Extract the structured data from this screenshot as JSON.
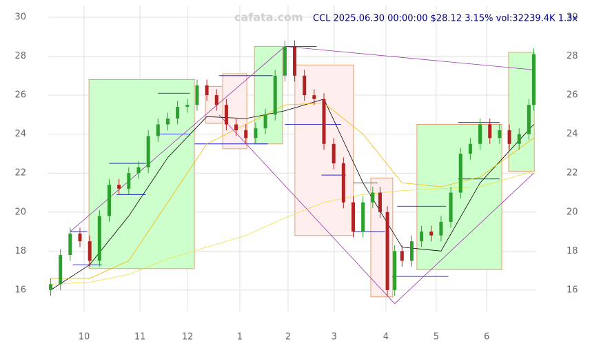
{
  "chart_data": {
    "type": "candlestick",
    "title": "CCL 2025.06.30 00:00:00 $28.12 3.15% vol:32239.4K 1.3x",
    "watermark": "cafata.com",
    "x": [
      1,
      5,
      9,
      13,
      17,
      21,
      25,
      29,
      33,
      37,
      41,
      45,
      49,
      53,
      57,
      61,
      65,
      69,
      73,
      77,
      81,
      85,
      89,
      93,
      97,
      101,
      105,
      109,
      113,
      117,
      121,
      125,
      129,
      133,
      136,
      139,
      142,
      145,
      149,
      153,
      157,
      161,
      165,
      169,
      173,
      177,
      181,
      185,
      189,
      193,
      197,
      199
    ],
    "open": [
      16.0,
      16.3,
      17.8,
      18.9,
      18.5,
      17.5,
      19.8,
      21.4,
      21.2,
      22.0,
      22.3,
      23.9,
      24.5,
      24.8,
      25.4,
      25.5,
      26.5,
      26.0,
      25.5,
      24.5,
      24.2,
      23.8,
      24.3,
      25.0,
      27.0,
      28.5,
      27.0,
      26.0,
      25.8,
      23.5,
      22.5,
      20.5,
      19.0,
      20.5,
      21.0,
      20.0,
      16.0,
      18.0,
      17.5,
      18.5,
      19.0,
      18.8,
      19.5,
      21.0,
      23.0,
      23.5,
      24.5,
      23.8,
      24.2,
      23.5,
      24.0,
      25.5
    ],
    "high": [
      16.6,
      18.1,
      19.2,
      19.2,
      18.8,
      20.1,
      21.7,
      21.7,
      22.3,
      22.6,
      24.2,
      24.8,
      25.1,
      25.7,
      25.8,
      26.8,
      26.8,
      26.3,
      25.8,
      24.8,
      24.5,
      24.6,
      25.3,
      27.3,
      28.8,
      28.8,
      27.3,
      26.3,
      26.1,
      23.8,
      22.8,
      20.8,
      20.8,
      21.3,
      21.3,
      20.3,
      18.3,
      18.3,
      18.8,
      19.3,
      19.3,
      19.8,
      21.3,
      23.3,
      23.8,
      24.8,
      24.8,
      24.5,
      24.5,
      24.3,
      25.8,
      28.4
    ],
    "low": [
      15.7,
      16.0,
      17.5,
      18.2,
      17.2,
      17.2,
      19.5,
      20.9,
      20.9,
      21.7,
      22.0,
      23.6,
      24.2,
      24.5,
      25.1,
      25.2,
      25.7,
      25.2,
      24.2,
      23.9,
      23.5,
      23.5,
      24.0,
      24.7,
      26.7,
      26.7,
      25.7,
      25.5,
      23.2,
      22.2,
      20.2,
      18.7,
      18.7,
      20.2,
      19.7,
      15.7,
      15.7,
      17.2,
      17.2,
      18.2,
      18.5,
      18.5,
      19.2,
      20.7,
      22.7,
      23.2,
      23.5,
      23.5,
      23.2,
      23.2,
      23.7,
      25.2
    ],
    "close": [
      16.3,
      17.8,
      18.9,
      18.5,
      17.5,
      19.8,
      21.4,
      21.2,
      22.0,
      22.3,
      23.9,
      24.5,
      24.8,
      25.4,
      25.5,
      26.5,
      26.0,
      25.5,
      24.5,
      24.2,
      23.8,
      24.3,
      25.0,
      27.0,
      28.5,
      27.0,
      26.0,
      25.8,
      23.5,
      22.5,
      20.5,
      19.0,
      20.5,
      21.0,
      20.0,
      16.0,
      18.0,
      17.5,
      18.5,
      19.0,
      18.8,
      19.5,
      21.0,
      23.0,
      23.5,
      24.5,
      23.8,
      24.2,
      23.5,
      24.0,
      25.5,
      28.1
    ],
    "up_color": "#2ca02c",
    "down_color": "#b22222",
    "xlim": [
      0,
      200
    ],
    "xticks": [
      {
        "value": 14.7,
        "label": "10"
      },
      {
        "value": 37.6,
        "label": "11"
      },
      {
        "value": 57.1,
        "label": "12"
      },
      {
        "value": 78.5,
        "label": "1"
      },
      {
        "value": 98.3,
        "label": "2"
      },
      {
        "value": 117.2,
        "label": "3"
      },
      {
        "value": 138.4,
        "label": "4"
      },
      {
        "value": 159,
        "label": "5"
      },
      {
        "value": 179.7,
        "label": "6"
      }
    ],
    "ylim": [
      14.9,
      30.6
    ],
    "yticks": [
      16,
      18,
      20,
      22,
      24,
      26,
      28,
      30
    ],
    "grid": true,
    "ma_x": [
      1,
      17,
      33,
      49,
      65,
      81,
      97,
      113,
      129,
      145,
      161,
      177,
      199
    ],
    "moving_averages": [
      {
        "color": "#000000",
        "values": [
          16.0,
          17.3,
          19.8,
          22.8,
          24.9,
          24.8,
          25.2,
          25.8,
          21.5,
          18.2,
          18.0,
          21.5,
          24.5
        ]
      },
      {
        "color": "#f5b800",
        "values": [
          16.6,
          16.6,
          17.5,
          20.5,
          23.5,
          24.5,
          25.5,
          25.6,
          24.0,
          21.5,
          21.3,
          21.8,
          23.8
        ]
      },
      {
        "color": "#f0e040",
        "values": [
          16.3,
          16.4,
          16.8,
          17.6,
          18.2,
          18.8,
          19.7,
          20.5,
          20.9,
          21.1,
          21.2,
          21.3,
          22.1
        ]
      }
    ],
    "boxes": [
      {
        "x0": 16.7,
        "x1": 59.9,
        "y0": 17.1,
        "y1": 26.8,
        "color": "#ccffcc"
      },
      {
        "x0": 64.4,
        "x1": 76.3,
        "y0": 24.55,
        "y1": 26.45,
        "color": "#ffeeee"
      },
      {
        "x0": 71.5,
        "x1": 81.4,
        "y0": 23.25,
        "y1": 27.1,
        "color": "#ffeeee"
      },
      {
        "x0": 84.5,
        "x1": 96.0,
        "y0": 23.5,
        "y1": 28.5,
        "color": "#ccffcc"
      },
      {
        "x0": 101.1,
        "x1": 125.1,
        "y0": 18.8,
        "y1": 27.55,
        "color": "#ffeeee"
      },
      {
        "x0": 132.2,
        "x1": 141.2,
        "y0": 15.65,
        "y1": 21.75,
        "color": "#ffeeee"
      },
      {
        "x0": 151.1,
        "x1": 185.9,
        "y0": 17.05,
        "y1": 24.5,
        "color": "#ccffcc"
      },
      {
        "x0": 188.7,
        "x1": 199.2,
        "y0": 22.1,
        "y1": 28.2,
        "color": "#ccffcc"
      }
    ],
    "trend_lines": [
      [
        9,
        19.0,
        97,
        28.5
      ],
      [
        97,
        28.5,
        199,
        27.3
      ],
      [
        70,
        25.0,
        142,
        15.3
      ],
      [
        142,
        15.3,
        199,
        22.0
      ]
    ],
    "levels": [
      [
        9,
        16,
        19.0
      ],
      [
        10,
        22,
        17.3
      ],
      [
        25,
        40,
        22.5
      ],
      [
        28,
        40,
        20.9
      ],
      [
        45,
        58,
        26.1
      ],
      [
        45,
        58,
        24.0
      ],
      [
        60,
        90,
        23.5
      ],
      [
        70,
        92,
        27.0
      ],
      [
        97,
        110,
        28.5
      ],
      [
        97,
        120,
        24.5
      ],
      [
        112,
        122,
        21.9
      ],
      [
        125,
        135,
        21.5
      ],
      [
        125,
        138,
        19.0
      ],
      [
        143,
        163,
        20.3
      ],
      [
        141,
        164,
        16.7
      ],
      [
        168,
        185,
        24.6
      ],
      [
        168,
        185,
        21.7
      ]
    ]
  }
}
